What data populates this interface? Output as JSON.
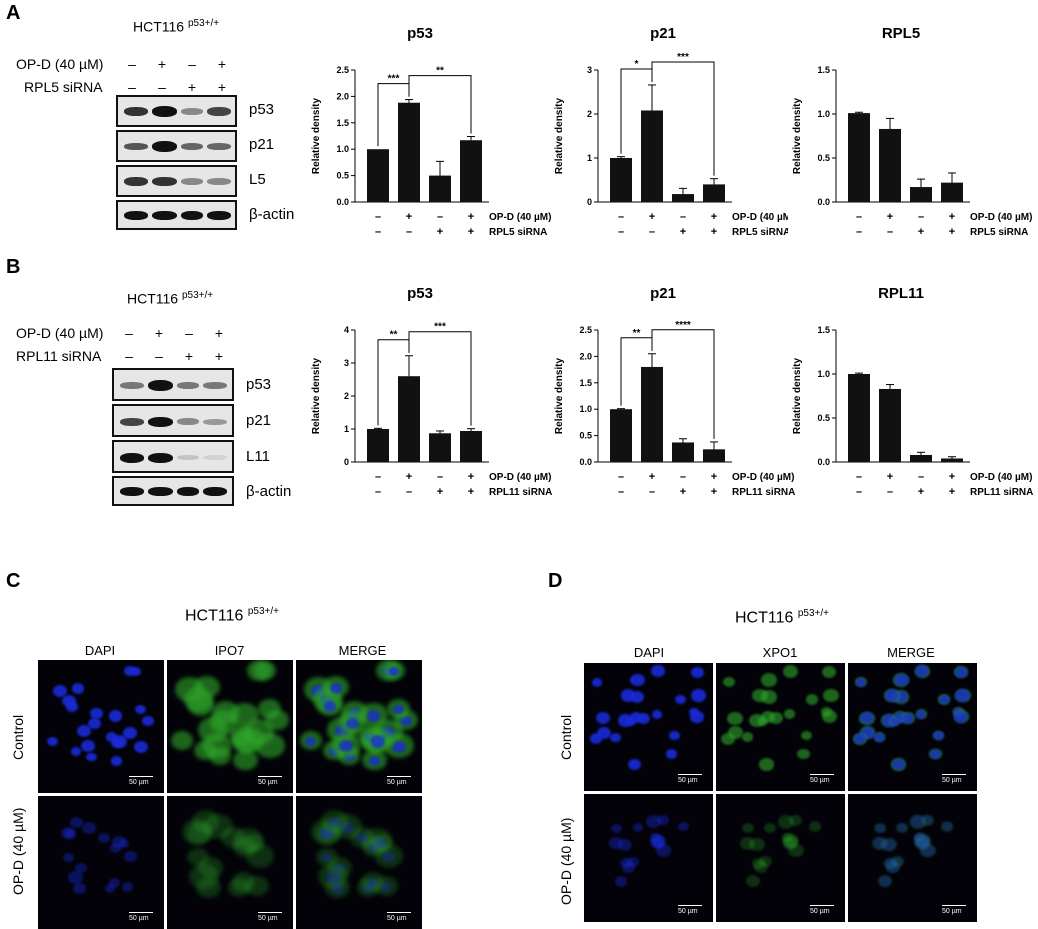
{
  "panels": {
    "A": {
      "letter": "A",
      "cell": "HCT116",
      "cell_sup": "p53+/+",
      "trt1": "OP-D (40 µM)",
      "trt2": "RPL5 siRNA",
      "signs1": [
        "–",
        "+",
        "–",
        "+"
      ],
      "signs2": [
        "–",
        "–",
        "+",
        "+"
      ],
      "rows": [
        "p53",
        "p21",
        "L5",
        "β-actin"
      ]
    },
    "B": {
      "letter": "B",
      "cell": "HCT116",
      "cell_sup": "p53+/+",
      "trt1": "OP-D (40 µM)",
      "trt2": "RPL11 siRNA",
      "signs1": [
        "–",
        "+",
        "–",
        "+"
      ],
      "signs2": [
        "–",
        "–",
        "+",
        "+"
      ],
      "rows": [
        "p53",
        "p21",
        "L11",
        "β-actin"
      ]
    },
    "C": {
      "letter": "C",
      "cell": "HCT116",
      "cell_sup": "p53+/+",
      "cols": [
        "DAPI",
        "IPO7",
        "MERGE"
      ],
      "rows": [
        "Control",
        "OP-D (40 µM)"
      ],
      "scale": "50 µm",
      "stain": "green-cytoplasm"
    },
    "D": {
      "letter": "D",
      "cell": "HCT116",
      "cell_sup": "p53+/+",
      "cols": [
        "DAPI",
        "XPO1",
        "MERGE"
      ],
      "rows": [
        "Control",
        "OP-D (40 µM)"
      ],
      "scale": "50 µm",
      "stain": "green-nuclear"
    }
  },
  "colors": {
    "bar": "#111111",
    "dapi": "#1a2bd8",
    "green": "#2fa82a"
  },
  "chart_data": [
    {
      "type": "bar",
      "panel": "A",
      "title": "p53",
      "ylabel": "Relative density",
      "ylim": [
        0,
        2.5
      ],
      "yticks": [
        0.0,
        0.5,
        1.0,
        1.5,
        2.0,
        2.5
      ],
      "ytick_labels": [
        "0.0",
        "0.5",
        "1.0",
        "1.5",
        "2.0",
        "2.5"
      ],
      "values": [
        1.0,
        1.88,
        0.5,
        1.17
      ],
      "errors": [
        0.0,
        0.06,
        0.27,
        0.07
      ],
      "row1_label": "OP-D (40 µM)",
      "row2_label": "RPL5 siRNA",
      "signs1": [
        "–",
        "+",
        "–",
        "+"
      ],
      "signs2": [
        "–",
        "–",
        "+",
        "+"
      ],
      "brackets": [
        {
          "from": 0,
          "to": 1,
          "label": "***"
        },
        {
          "from": 1,
          "to": 3,
          "label": "**"
        }
      ]
    },
    {
      "type": "bar",
      "panel": "A",
      "title": "p21",
      "ylabel": "Relative density",
      "ylim": [
        0,
        3
      ],
      "yticks": [
        0,
        1,
        2,
        3
      ],
      "ytick_labels": [
        "0",
        "1",
        "2",
        "3"
      ],
      "values": [
        1.0,
        2.08,
        0.18,
        0.4
      ],
      "errors": [
        0.03,
        0.58,
        0.13,
        0.13
      ],
      "row1_label": "OP-D (40 µM)",
      "row2_label": "RPL5 siRNA",
      "signs1": [
        "–",
        "+",
        "–",
        "+"
      ],
      "signs2": [
        "–",
        "–",
        "+",
        "+"
      ],
      "brackets": [
        {
          "from": 0,
          "to": 1,
          "label": "*"
        },
        {
          "from": 1,
          "to": 3,
          "label": "***"
        }
      ]
    },
    {
      "type": "bar",
      "panel": "A",
      "title": "RPL5",
      "ylabel": "Relative density",
      "ylim": [
        0,
        1.5
      ],
      "yticks": [
        0.0,
        0.5,
        1.0,
        1.5
      ],
      "ytick_labels": [
        "0.0",
        "0.5",
        "1.0",
        "1.5"
      ],
      "values": [
        1.01,
        0.83,
        0.17,
        0.22
      ],
      "errors": [
        0.01,
        0.12,
        0.09,
        0.11
      ],
      "row1_label": "OP-D (40 µM)",
      "row2_label": "RPL5 siRNA",
      "signs1": [
        "–",
        "+",
        "–",
        "+"
      ],
      "signs2": [
        "–",
        "–",
        "+",
        "+"
      ],
      "brackets": []
    },
    {
      "type": "bar",
      "panel": "B",
      "title": "p53",
      "ylabel": "Relative density",
      "ylim": [
        0,
        4
      ],
      "yticks": [
        0,
        1,
        2,
        3,
        4
      ],
      "ytick_labels": [
        "0",
        "1",
        "2",
        "3",
        "4"
      ],
      "values": [
        1.0,
        2.6,
        0.87,
        0.94
      ],
      "errors": [
        0.02,
        0.62,
        0.07,
        0.07
      ],
      "row1_label": "OP-D (40 µM)",
      "row2_label": "RPL11 siRNA",
      "signs1": [
        "–",
        "+",
        "–",
        "+"
      ],
      "signs2": [
        "–",
        "–",
        "+",
        "+"
      ],
      "brackets": [
        {
          "from": 0,
          "to": 1,
          "label": "**"
        },
        {
          "from": 1,
          "to": 3,
          "label": "***"
        }
      ]
    },
    {
      "type": "bar",
      "panel": "B",
      "title": "p21",
      "ylabel": "Relative density",
      "ylim": [
        0,
        2.5
      ],
      "yticks": [
        0.0,
        0.5,
        1.0,
        1.5,
        2.0,
        2.5
      ],
      "ytick_labels": [
        "0.0",
        "0.5",
        "1.0",
        "1.5",
        "2.0",
        "2.5"
      ],
      "values": [
        1.0,
        1.8,
        0.37,
        0.24
      ],
      "errors": [
        0.01,
        0.25,
        0.07,
        0.14
      ],
      "row1_label": "OP-D (40 µM)",
      "row2_label": "RPL11 siRNA",
      "signs1": [
        "–",
        "+",
        "–",
        "+"
      ],
      "signs2": [
        "–",
        "–",
        "+",
        "+"
      ],
      "brackets": [
        {
          "from": 0,
          "to": 1,
          "label": "**"
        },
        {
          "from": 1,
          "to": 3,
          "label": "****"
        }
      ]
    },
    {
      "type": "bar",
      "panel": "B",
      "title": "RPL11",
      "ylabel": "Relative density",
      "ylim": [
        0,
        1.5
      ],
      "yticks": [
        0.0,
        0.5,
        1.0,
        1.5
      ],
      "ytick_labels": [
        "0.0",
        "0.5",
        "1.0",
        "1.5"
      ],
      "values": [
        1.0,
        0.83,
        0.08,
        0.04
      ],
      "errors": [
        0.01,
        0.05,
        0.03,
        0.02
      ],
      "row1_label": "OP-D (40 µM)",
      "row2_label": "RPL11 siRNA",
      "signs1": [
        "–",
        "+",
        "–",
        "+"
      ],
      "signs2": [
        "–",
        "–",
        "+",
        "+"
      ],
      "brackets": []
    }
  ]
}
